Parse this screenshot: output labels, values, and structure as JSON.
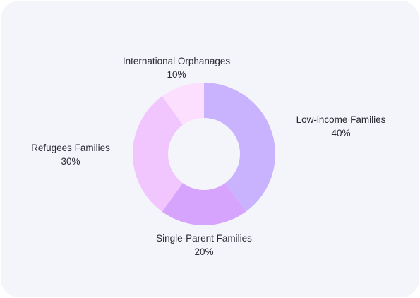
{
  "chart_data": {
    "type": "pie",
    "donut": true,
    "slices": [
      {
        "label": "Low-income Families",
        "value": 40,
        "display": "40%",
        "color": "#c9b3fe"
      },
      {
        "label": "Single-Parent Families",
        "value": 20,
        "display": "20%",
        "color": "#d7a4fd"
      },
      {
        "label": "Refugees Families",
        "value": 30,
        "display": "30%",
        "color": "#f1c5fd"
      },
      {
        "label": "International Orphanages",
        "value": 10,
        "display": "10%",
        "color": "#fcdefe"
      }
    ],
    "start_position": "top",
    "direction": "clockwise",
    "background": "#f4f5fa"
  }
}
